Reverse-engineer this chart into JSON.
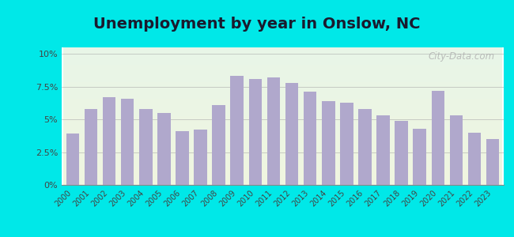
{
  "title": "Unemployment by year in Onslow, NC",
  "years": [
    2000,
    2001,
    2002,
    2003,
    2004,
    2005,
    2006,
    2007,
    2008,
    2009,
    2010,
    2011,
    2012,
    2013,
    2014,
    2015,
    2016,
    2017,
    2018,
    2019,
    2020,
    2021,
    2022,
    2023
  ],
  "values": [
    3.9,
    5.8,
    6.7,
    6.6,
    5.8,
    5.5,
    4.1,
    4.2,
    6.1,
    8.3,
    8.1,
    8.2,
    7.8,
    7.1,
    6.4,
    6.3,
    5.8,
    5.3,
    4.9,
    4.3,
    7.2,
    5.3,
    4.0,
    3.5
  ],
  "bar_color": "#b0a8cc",
  "bg_color_outer": "#00e8e8",
  "bg_color_plot_top": "#e8f5e8",
  "bg_color_plot_bottom": "#f0f5e0",
  "yticks": [
    0,
    2.5,
    5.0,
    7.5,
    10.0
  ],
  "ytick_labels": [
    "0%",
    "2.5%",
    "5%",
    "7.5%",
    "10%"
  ],
  "ylim": [
    0,
    10.5
  ],
  "title_fontsize": 14,
  "watermark_text": "City-Data.com"
}
